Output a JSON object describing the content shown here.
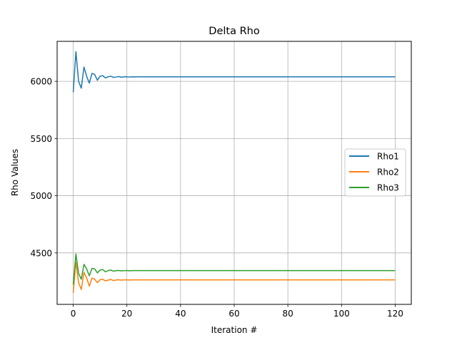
{
  "chart_data": {
    "type": "line",
    "title": "Delta Rho",
    "xlabel": "Iteration #",
    "ylabel": "Rho Values",
    "xlim": [
      -6,
      126
    ],
    "ylim": [
      4050,
      6350
    ],
    "xticks": [
      0,
      20,
      40,
      60,
      80,
      100,
      120
    ],
    "yticks": [
      4500,
      5000,
      5500,
      6000
    ],
    "grid": true,
    "legend_position": "center-right",
    "x": [
      0,
      1,
      2,
      3,
      4,
      5,
      6,
      7,
      8,
      9,
      10,
      11,
      12,
      13,
      14,
      15,
      16,
      17,
      18,
      19,
      20,
      21,
      22,
      23,
      24,
      120
    ],
    "series": [
      {
        "name": "Rho1",
        "color": "#1f77b4",
        "values": [
          5905,
          6260,
          6000,
          5940,
          6125,
          6045,
          5985,
          6070,
          6060,
          6010,
          6045,
          6050,
          6030,
          6040,
          6045,
          6035,
          6038,
          6042,
          6036,
          6040,
          6040,
          6038,
          6040,
          6039,
          6040,
          6040
        ]
      },
      {
        "name": "Rho2",
        "color": "#ff7f0e",
        "values": [
          4150,
          4420,
          4240,
          4180,
          4330,
          4280,
          4210,
          4280,
          4270,
          4240,
          4265,
          4270,
          4255,
          4262,
          4268,
          4258,
          4264,
          4265,
          4262,
          4264,
          4264,
          4263,
          4264,
          4264,
          4264,
          4264
        ]
      },
      {
        "name": "Rho3",
        "color": "#2ca02c",
        "values": [
          4225,
          4490,
          4320,
          4270,
          4400,
          4360,
          4300,
          4365,
          4360,
          4325,
          4350,
          4355,
          4335,
          4345,
          4350,
          4340,
          4345,
          4346,
          4343,
          4345,
          4345,
          4344,
          4345,
          4345,
          4345,
          4345
        ]
      }
    ]
  }
}
